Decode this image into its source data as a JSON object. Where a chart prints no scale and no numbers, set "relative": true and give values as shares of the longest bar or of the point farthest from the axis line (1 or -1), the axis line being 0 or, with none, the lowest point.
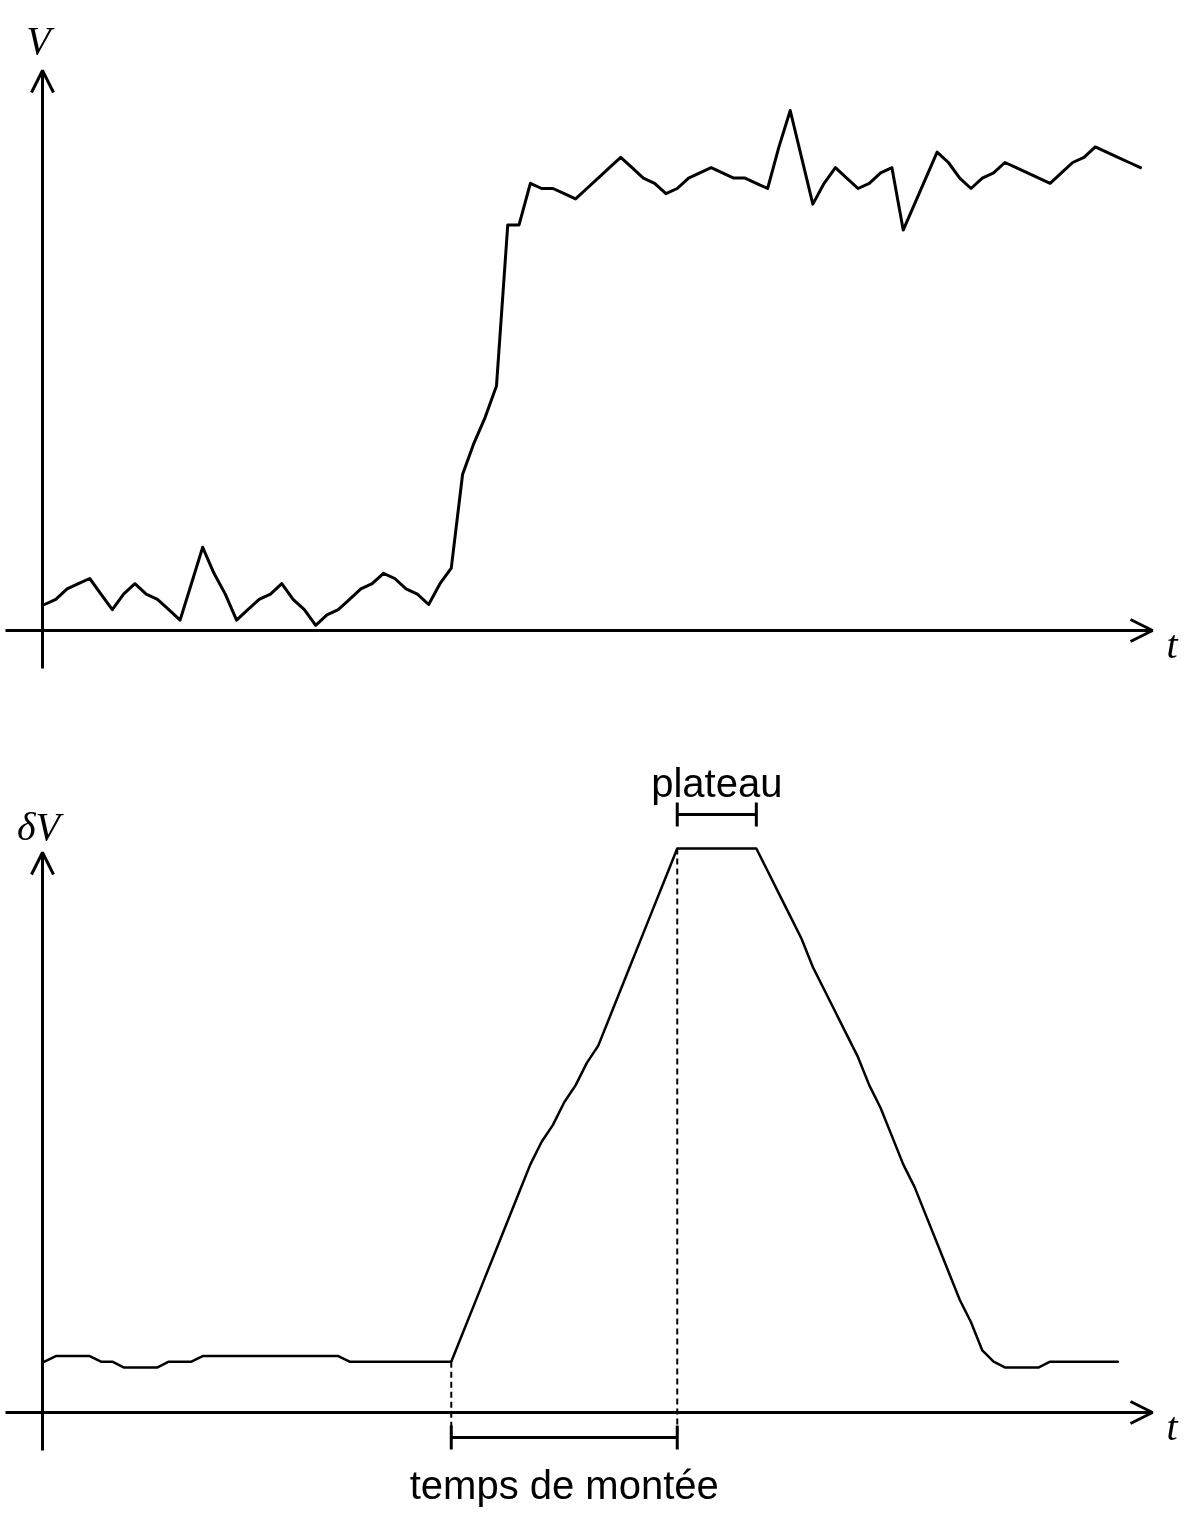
{
  "chart_data": [
    {
      "type": "line",
      "relative": true,
      "ylabel": "V",
      "xlabel": "t",
      "color": "#000000",
      "categories": [
        null,
        null,
        null,
        null,
        null,
        null,
        null,
        null,
        null,
        null,
        null,
        null,
        null,
        null,
        null,
        null,
        null,
        null,
        null,
        null,
        null,
        null,
        null,
        null,
        null,
        null,
        null,
        null,
        null,
        null,
        null,
        null,
        null,
        null,
        null,
        null,
        null,
        null,
        null,
        null,
        null,
        null,
        null,
        null,
        null,
        null,
        null,
        null,
        null,
        null,
        null,
        null,
        null,
        null,
        null,
        null,
        null,
        null,
        null,
        null,
        null,
        null,
        null,
        null,
        null,
        null,
        null,
        null,
        null,
        null,
        null,
        null,
        null,
        null,
        null,
        null,
        null,
        null,
        null,
        null,
        null,
        null,
        null,
        null,
        null,
        null,
        null,
        null,
        null,
        null,
        null,
        null,
        null,
        null,
        null,
        null,
        null,
        null
      ],
      "values": [
        0.05,
        0.06,
        0.08,
        0.09,
        0.1,
        0.07,
        0.04,
        0.07,
        0.09,
        0.07,
        0.06,
        0.04,
        0.02,
        0.09,
        0.16,
        0.11,
        0.07,
        0.02,
        0.04,
        0.06,
        0.07,
        0.09,
        0.06,
        0.04,
        0.01,
        0.03,
        0.04,
        0.06,
        0.08,
        0.09,
        0.11,
        0.1,
        0.08,
        0.07,
        0.05,
        0.09,
        0.12,
        0.3,
        0.36,
        0.41,
        0.47,
        0.78,
        0.78,
        0.86,
        0.85,
        0.85,
        0.84,
        0.83,
        0.85,
        0.87,
        0.89,
        0.91,
        0.89,
        0.87,
        0.86,
        0.84,
        0.85,
        0.87,
        0.88,
        0.89,
        0.88,
        0.87,
        0.87,
        0.86,
        0.85,
        0.93,
        1.0,
        0.91,
        0.82,
        0.86,
        0.89,
        0.87,
        0.85,
        0.86,
        0.88,
        0.89,
        0.77,
        0.82,
        0.87,
        0.92,
        0.9,
        0.87,
        0.85,
        0.87,
        0.88,
        0.9,
        0.89,
        0.88,
        0.87,
        0.86,
        0.88,
        0.9,
        0.91,
        0.93,
        0.92,
        0.91,
        0.9,
        0.89
      ]
    },
    {
      "type": "line",
      "relative": true,
      "ylabel": "δV",
      "xlabel": "t",
      "color": "#000000",
      "annotations": [
        "plateau",
        "temps de montée"
      ],
      "categories": [
        null,
        null,
        null,
        null,
        null,
        null,
        null,
        null,
        null,
        null,
        null,
        null,
        null,
        null,
        null,
        null,
        null,
        null,
        null,
        null,
        null,
        null,
        null,
        null,
        null,
        null,
        null,
        null,
        null,
        null,
        null,
        null,
        null,
        null,
        null,
        null,
        null,
        null,
        null,
        null,
        null,
        null,
        null,
        null,
        null,
        null,
        null,
        null,
        null,
        null,
        null,
        null,
        null,
        null,
        null,
        null,
        null,
        null,
        null,
        null,
        null,
        null,
        null,
        null,
        null,
        null,
        null,
        null,
        null,
        null,
        null,
        null,
        null,
        null,
        null,
        null,
        null,
        null,
        null,
        null,
        null,
        null,
        null,
        null,
        null,
        null,
        null,
        null,
        null,
        null,
        null,
        null,
        null,
        null,
        null,
        null
      ],
      "values": [
        0.09,
        0.1,
        0.1,
        0.1,
        0.1,
        0.09,
        0.09,
        0.08,
        0.08,
        0.08,
        0.08,
        0.09,
        0.09,
        0.09,
        0.1,
        0.1,
        0.1,
        0.1,
        0.1,
        0.1,
        0.1,
        0.1,
        0.1,
        0.1,
        0.1,
        0.1,
        0.1,
        0.09,
        0.09,
        0.09,
        0.09,
        0.09,
        0.09,
        0.09,
        0.09,
        0.09,
        0.09,
        0.14,
        0.19,
        0.24,
        0.29,
        0.34,
        0.39,
        0.44,
        0.48,
        0.51,
        0.55,
        0.58,
        0.62,
        0.65,
        0.7,
        0.75,
        0.8,
        0.85,
        0.9,
        0.95,
        1.0,
        1.0,
        1.0,
        1.0,
        1.0,
        1.0,
        1.0,
        1.0,
        0.96,
        0.92,
        0.88,
        0.84,
        0.79,
        0.75,
        0.71,
        0.67,
        0.63,
        0.58,
        0.54,
        0.49,
        0.44,
        0.4,
        0.35,
        0.3,
        0.25,
        0.2,
        0.16,
        0.11,
        0.09,
        0.08,
        0.08,
        0.08,
        0.08,
        0.09,
        0.09,
        0.09,
        0.09,
        0.09,
        0.09,
        0.09
      ]
    }
  ]
}
